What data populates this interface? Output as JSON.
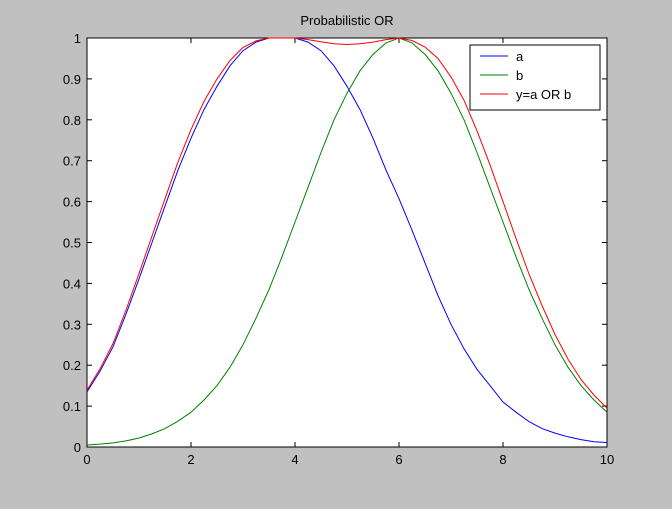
{
  "window": {
    "background": "#c0c0c0"
  },
  "chart_data": {
    "type": "line",
    "title": "Probabilistic OR",
    "xlabel": "",
    "ylabel": "",
    "xlim": [
      0,
      10
    ],
    "ylim": [
      0,
      1
    ],
    "xticks": [
      0,
      2,
      4,
      6,
      8,
      10
    ],
    "yticks": [
      0,
      0.1,
      0.2,
      0.3,
      0.4,
      0.5,
      0.6,
      0.7,
      0.8,
      0.9,
      1
    ],
    "grid": false,
    "legend_position": "top-right",
    "x": [
      0,
      0.25,
      0.5,
      0.75,
      1,
      1.25,
      1.5,
      1.75,
      2,
      2.25,
      2.5,
      2.75,
      3,
      3.25,
      3.5,
      3.75,
      4,
      4.25,
      4.5,
      4.75,
      5,
      5.25,
      5.5,
      5.75,
      6,
      6.25,
      6.5,
      6.75,
      7,
      7.25,
      7.5,
      7.75,
      8,
      8.25,
      8.5,
      8.75,
      9,
      9.25,
      9.5,
      9.75,
      10
    ],
    "series": [
      {
        "name": "a",
        "color": "#0000ff",
        "values": [
          0.135,
          0.185,
          0.245,
          0.325,
          0.411,
          0.5,
          0.589,
          0.677,
          0.755,
          0.825,
          0.882,
          0.932,
          0.969,
          0.99,
          1.0,
          1.0,
          1.0,
          0.99,
          0.969,
          0.932,
          0.882,
          0.825,
          0.755,
          0.677,
          0.607,
          0.53,
          0.45,
          0.37,
          0.3,
          0.24,
          0.19,
          0.15,
          0.11,
          0.085,
          0.062,
          0.045,
          0.034,
          0.025,
          0.018,
          0.013,
          0.011
        ]
      },
      {
        "name": "b",
        "color": "#008000",
        "values": [
          0.005,
          0.007,
          0.01,
          0.015,
          0.022,
          0.032,
          0.045,
          0.063,
          0.085,
          0.115,
          0.15,
          0.195,
          0.25,
          0.315,
          0.385,
          0.465,
          0.55,
          0.635,
          0.72,
          0.8,
          0.865,
          0.92,
          0.96,
          0.988,
          1.0,
          0.988,
          0.96,
          0.92,
          0.865,
          0.8,
          0.72,
          0.635,
          0.55,
          0.465,
          0.385,
          0.315,
          0.25,
          0.195,
          0.15,
          0.115,
          0.085
        ]
      },
      {
        "name": "y=a OR b",
        "color": "#ff0000",
        "values": [
          0.139,
          0.191,
          0.253,
          0.335,
          0.424,
          0.516,
          0.607,
          0.697,
          0.776,
          0.845,
          0.9,
          0.945,
          0.977,
          0.993,
          1.0,
          1.0,
          1.0,
          0.996,
          0.991,
          0.986,
          0.984,
          0.986,
          0.99,
          0.996,
          1.0,
          0.994,
          0.978,
          0.95,
          0.905,
          0.848,
          0.773,
          0.69,
          0.6,
          0.51,
          0.423,
          0.346,
          0.275,
          0.215,
          0.165,
          0.127,
          0.095
        ]
      }
    ]
  }
}
